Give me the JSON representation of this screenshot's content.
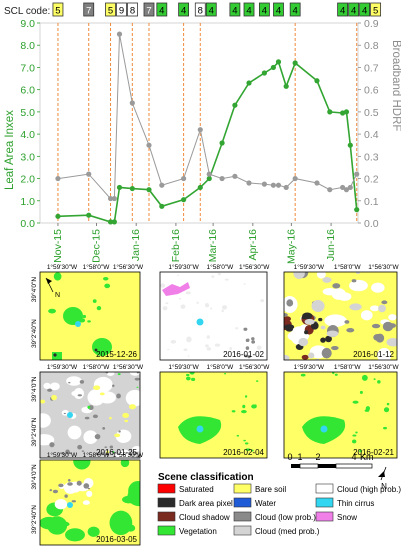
{
  "chart_data": {
    "type": "line",
    "scl_label": "SCL code:",
    "scl_codes": [
      {
        "code": "5",
        "date": "2015-11-15"
      },
      {
        "code": "7",
        "date": "2015-12-09"
      },
      {
        "code": "5",
        "date": "2015-12-26"
      },
      {
        "code": "9",
        "date": "2016-01-02"
      },
      {
        "code": "8",
        "date": "2016-01-12"
      },
      {
        "code": "7",
        "date": "2016-01-25"
      },
      {
        "code": "4",
        "date": "2016-02-04"
      },
      {
        "code": "4",
        "date": "2016-02-21"
      },
      {
        "code": "8",
        "date": "2016-03-05"
      },
      {
        "code": "4",
        "date": "2016-03-12"
      },
      {
        "code": "4",
        "date": "2016-04-01"
      },
      {
        "code": "4",
        "date": "2016-04-12"
      },
      {
        "code": "4",
        "date": "2016-04-24"
      },
      {
        "code": "4",
        "date": "2016-05-05"
      },
      {
        "code": "4",
        "date": "2016-05-18"
      },
      {
        "code": "4",
        "date": "2016-06-24"
      },
      {
        "code": "4",
        "date": "2016-06-27"
      },
      {
        "code": "4",
        "date": "2016-06-30"
      },
      {
        "code": "5",
        "date": "2016-07-05"
      }
    ],
    "code_colors": {
      "4": "#33cc33",
      "5": "#ffff66",
      "7": "#808080",
      "8": "#ffffff",
      "9": "#ffffff"
    },
    "x_ticks": [
      "Nov-15",
      "Dec-15",
      "Jan-16",
      "Feb-16",
      "Mar-16",
      "Apr-16",
      "May-16",
      "Jun-16"
    ],
    "x_tick_dates": [
      "2015-11-15",
      "2015-12-15",
      "2016-01-15",
      "2016-02-15",
      "2016-03-15",
      "2016-04-15",
      "2016-05-15",
      "2016-06-15"
    ],
    "xlim": [
      "2015-11-01",
      "2016-07-06"
    ],
    "ylabel_left": "Leaf Area Inxex",
    "ylabel_right": "Broadband HDRF",
    "ylim_left": [
      0,
      9
    ],
    "ylim_right": [
      0,
      0.9
    ],
    "yticks_left": [
      "0.0",
      "1.0",
      "2.0",
      "3.0",
      "4.0",
      "5.0",
      "6.0",
      "7.0",
      "8.0",
      "9.0"
    ],
    "yticks_right": [
      "0.0",
      "0.1",
      "0.2",
      "0.3",
      "0.4",
      "0.5",
      "0.6",
      "0.7",
      "0.8",
      "0.9"
    ],
    "series": [
      {
        "name": "Leaf Area Inxex",
        "color": "#33a532",
        "axis": "left",
        "x": [
          "2015-11-15",
          "2015-12-09",
          "2015-12-26",
          "2015-12-29",
          "2016-01-02",
          "2016-01-12",
          "2016-01-25",
          "2016-02-04",
          "2016-02-21",
          "2016-03-05",
          "2016-03-12",
          "2016-03-22",
          "2016-04-01",
          "2016-04-12",
          "2016-04-24",
          "2016-05-01",
          "2016-05-05",
          "2016-05-11",
          "2016-05-18",
          "2016-06-04",
          "2016-06-14",
          "2016-06-24",
          "2016-06-27",
          "2016-06-30",
          "2016-07-05"
        ],
        "values": [
          0.3,
          0.35,
          0.05,
          0.05,
          1.6,
          1.55,
          1.5,
          0.75,
          1.05,
          1.6,
          2.0,
          3.6,
          5.3,
          6.3,
          6.75,
          7.0,
          7.25,
          6.15,
          7.2,
          6.4,
          5.0,
          4.95,
          5.0,
          3.5,
          0.6
        ]
      },
      {
        "name": "Broadband HDRF",
        "color": "#9a9a9a",
        "axis": "right",
        "x": [
          "2015-11-15",
          "2015-12-09",
          "2015-12-26",
          "2015-12-29",
          "2016-01-02",
          "2016-01-12",
          "2016-01-25",
          "2016-02-04",
          "2016-02-21",
          "2016-03-05",
          "2016-03-12",
          "2016-03-22",
          "2016-04-01",
          "2016-04-12",
          "2016-04-24",
          "2016-05-01",
          "2016-05-05",
          "2016-05-11",
          "2016-05-18",
          "2016-06-04",
          "2016-06-14",
          "2016-06-24",
          "2016-06-27",
          "2016-06-30",
          "2016-07-05"
        ],
        "values": [
          0.2,
          0.22,
          0.11,
          0.11,
          0.85,
          0.54,
          0.35,
          0.17,
          0.2,
          0.42,
          0.22,
          0.2,
          0.21,
          0.18,
          0.175,
          0.17,
          0.17,
          0.16,
          0.2,
          0.18,
          0.15,
          0.16,
          0.15,
          0.16,
          0.22
        ]
      }
    ],
    "dashed_lines_dates": [
      "2015-11-15",
      "2015-12-09",
      "2015-12-26",
      "2016-01-12",
      "2016-01-25",
      "2016-02-21",
      "2016-03-05",
      "2016-05-18",
      "2016-07-05"
    ]
  },
  "maps": [
    {
      "date": "2015-12-26",
      "lon_labels": [
        "1°59'30\"W",
        "1°58'0\"W",
        "1°56'30\"W"
      ],
      "lat_labels": [
        "39°4'0\"N",
        "39°2'40\"N"
      ],
      "show_north": true
    },
    {
      "date": "2016-01-02",
      "lon_labels": [
        "1°59'30\"W",
        "1°58'0\"W",
        "1°56'30\"W"
      ],
      "lat_labels": [],
      "show_north": false
    },
    {
      "date": "2016-01-12",
      "lon_labels": [
        "1°59'30\"W",
        "1°58'0\"W",
        "1°56'30\"W"
      ],
      "lat_labels": [],
      "show_north": false
    },
    {
      "date": "2016-01-25",
      "lon_labels": [
        "1°59'30\"W",
        "1°58'0\"W",
        "1°56'30\"W"
      ],
      "lat_labels": [
        "39°4'0\"N",
        "39°2'40\"N"
      ],
      "show_north": false
    },
    {
      "date": "2016-02-04",
      "lon_labels": [
        "1°59'30\"W",
        "1°58'0\"W",
        "1°56'30\"W"
      ],
      "lat_labels": [],
      "show_north": false
    },
    {
      "date": "2016-02-21",
      "lon_labels": [
        "1°59'30\"W",
        "1°58'0\"W",
        "1°56'30\"W"
      ],
      "lat_labels": [],
      "show_north": false
    },
    {
      "date": "2016-03-05",
      "lon_labels": [
        "1°59'30\"W",
        "1°58'0\"W",
        "1°56'30\"W"
      ],
      "lat_labels": [
        "39°4'0\"N",
        "39°2'40\"N"
      ],
      "show_north": false
    }
  ],
  "legend": {
    "title": "Scene classification",
    "items": [
      {
        "label": "Saturated",
        "color": "#ff0000"
      },
      {
        "label": "Bare soil",
        "color": "#ffff66"
      },
      {
        "label": "Cloud (high prob.)",
        "color": "#ffffff"
      },
      {
        "label": "Dark area pixel",
        "color": "#2b2b2b"
      },
      {
        "label": "Water",
        "color": "#1f5bd6"
      },
      {
        "label": "Thin cirrus",
        "color": "#33d6f0"
      },
      {
        "label": "Cloud shadow",
        "color": "#7a2a1e"
      },
      {
        "label": "Cloud (low prob.)",
        "color": "#8a8a8a"
      },
      {
        "label": "Snow",
        "color": "#f080e8"
      },
      {
        "label": "Vegetation",
        "color": "#33e633"
      },
      {
        "label": "Cloud (med prob.)",
        "color": "#d4d4d4"
      }
    ]
  },
  "scale_bar": {
    "ticks": [
      "0",
      "1",
      "2",
      "4"
    ],
    "unit": "Km",
    "north": "N"
  },
  "north_label": "N"
}
